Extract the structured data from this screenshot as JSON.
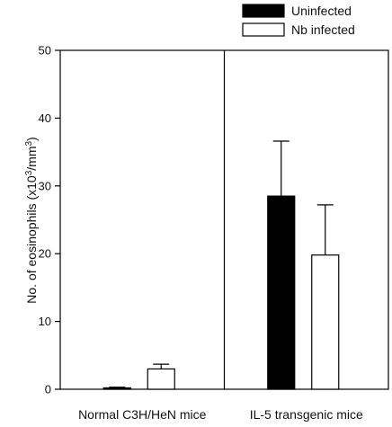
{
  "chart_data": {
    "type": "bar",
    "categories": [
      "Normal C3H/HeN mice",
      "IL-5 transgenic mice"
    ],
    "series": [
      {
        "name": "Uninfected",
        "values": [
          0.2,
          28.5
        ],
        "errors": [
          0.1,
          8.1
        ],
        "color": "#000000"
      },
      {
        "name": "Nb infected",
        "values": [
          3.0,
          19.8
        ],
        "errors": [
          0.7,
          7.4
        ],
        "color": "#ffffff"
      }
    ],
    "ylabel": {
      "prefix": "No. of eosinophils (x10",
      "sup1": "3",
      "mid": "/mm",
      "sup2": "3",
      "suffix": ")"
    },
    "ylim": [
      0,
      50
    ],
    "yticks": [
      "0",
      "10",
      "20",
      "30",
      "40",
      "50"
    ],
    "legend_position": "top-right",
    "grid": false,
    "panel_divider": true
  }
}
